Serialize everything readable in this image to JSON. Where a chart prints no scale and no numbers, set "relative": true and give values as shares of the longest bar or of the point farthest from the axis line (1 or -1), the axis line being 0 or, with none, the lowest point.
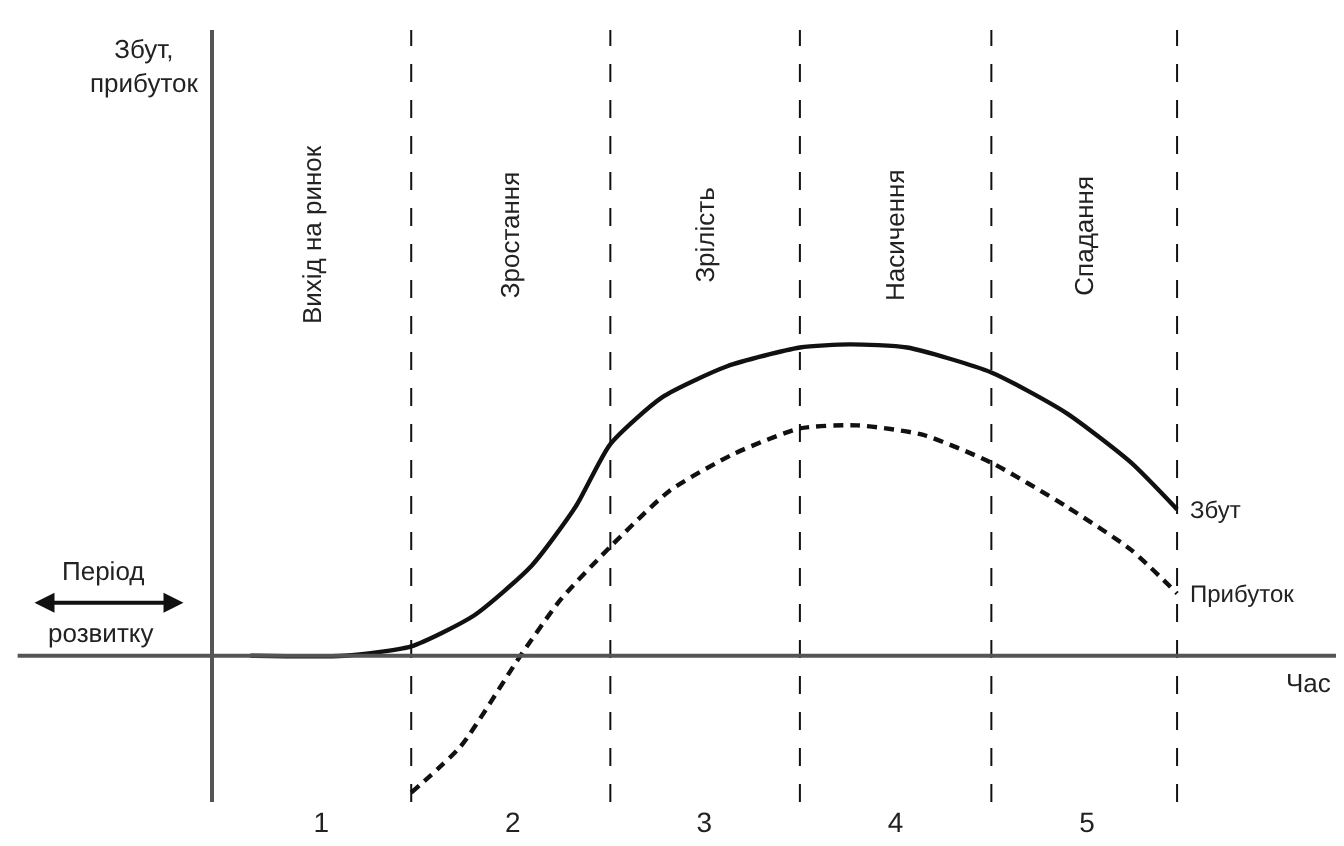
{
  "chart_data": {
    "type": "line",
    "relative": true,
    "xlabel": "Час",
    "xlim": [
      0.44,
      6.3
    ],
    "xticks": [
      1,
      2,
      3,
      4,
      5
    ],
    "tick_labels": "x",
    "legend": false,
    "marker": "none",
    "series": [
      {
        "name": "Збут",
        "color": "#111111",
        "line_style": "solid",
        "x": [
          0.63,
          1.12,
          1.47,
          1.8,
          2.1,
          2.33,
          2.51,
          2.78,
          3.12,
          3.5,
          3.76,
          4.06,
          4.5,
          4.89,
          5.23,
          5.47
        ],
        "values": [
          0,
          0,
          0.03,
          0.13,
          0.29,
          0.48,
          0.68,
          0.83,
          0.93,
          0.99,
          1.0,
          0.99,
          0.91,
          0.78,
          0.62,
          0.47
        ]
      },
      {
        "name": "Прибуток",
        "color": "#111111",
        "line_style": "dashed",
        "x": [
          1.47,
          1.73,
          2.03,
          2.25,
          2.51,
          2.82,
          3.16,
          3.5,
          3.8,
          4.14,
          4.5,
          4.89,
          5.23,
          5.47
        ],
        "values": [
          -0.44,
          -0.29,
          -0.01,
          0.18,
          0.35,
          0.53,
          0.65,
          0.73,
          0.74,
          0.71,
          0.62,
          0.48,
          0.34,
          0.2
        ]
      }
    ],
    "ref_lines": [
      {
        "axis": "x",
        "value": 1.47,
        "line_style": "dashed"
      },
      {
        "axis": "x",
        "value": 2.51,
        "line_style": "dashed"
      },
      {
        "axis": "x",
        "value": 3.5,
        "line_style": "dashed"
      },
      {
        "axis": "x",
        "value": 4.5,
        "line_style": "dashed"
      },
      {
        "axis": "x",
        "value": 5.47,
        "line_style": "dashed"
      }
    ],
    "annotations": [
      "Збут, прибуток",
      "Період розвитку",
      "Вихід на ринок",
      "Зростання",
      "Зрілість",
      "Насичення",
      "Спадання"
    ]
  }
}
